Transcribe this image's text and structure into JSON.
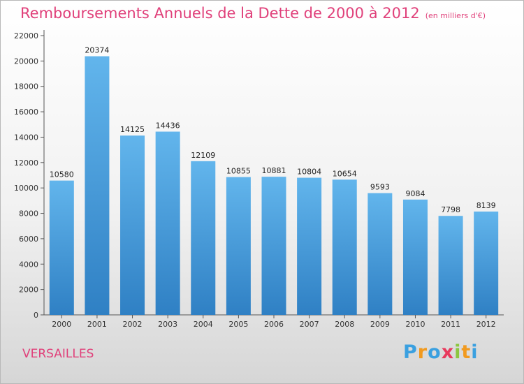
{
  "header": {
    "title": "Remboursements Annuels de la Dette de 2000 à 2012",
    "subtitle": "(en milliers d'€)"
  },
  "footer": {
    "city": "VERSAILLES",
    "logo": [
      "P",
      "r",
      "o",
      "x",
      "i",
      "t",
      "i"
    ],
    "logo_colors": [
      "#3aa0e0",
      "#f19a1f",
      "#3aa0e0",
      "#e8395c",
      "#8cc63f",
      "#f19a1f",
      "#3aa0e0"
    ]
  },
  "colors": {
    "bar_top": "#62b5ec",
    "bar_bottom": "#2f80c4",
    "title": "#e0407a"
  },
  "chart_data": {
    "type": "bar",
    "categories": [
      "2000",
      "2001",
      "2002",
      "2003",
      "2004",
      "2005",
      "2006",
      "2007",
      "2008",
      "2009",
      "2010",
      "2011",
      "2012"
    ],
    "values": [
      10580,
      20374,
      14125,
      14436,
      12109,
      10855,
      10881,
      10804,
      10654,
      9593,
      9084,
      7798,
      8139
    ],
    "ylim": [
      0,
      22000
    ],
    "yticks": [
      0,
      2000,
      4000,
      6000,
      8000,
      10000,
      12000,
      14000,
      16000,
      18000,
      20000,
      22000
    ],
    "grid": false,
    "legend": "none"
  }
}
